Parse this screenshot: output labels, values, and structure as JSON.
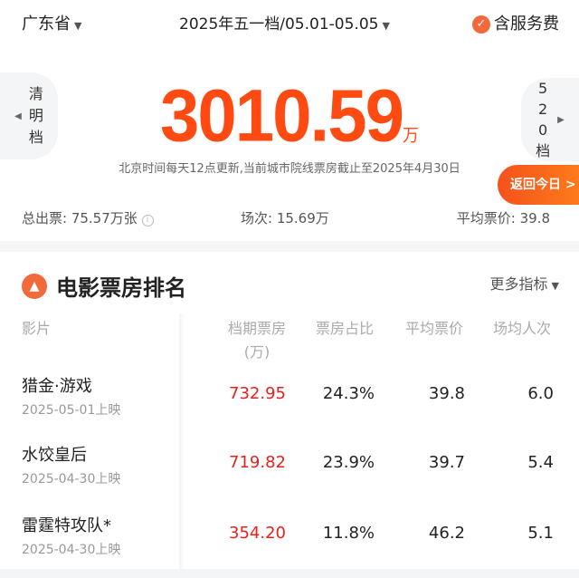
{
  "header": {
    "region": "广东省",
    "period": "2025年五一档/05.01-05.05",
    "service_fee": "含服务费"
  },
  "nav": {
    "prev": [
      "清",
      "明",
      "档"
    ],
    "next": [
      "5",
      "2",
      "0",
      "档"
    ]
  },
  "total": {
    "value": "3010.59",
    "unit": "万"
  },
  "note": "北京时间每天12点更新,当前城市院线票房截止至2025年4月30日",
  "today_button": "返回今日 >",
  "stats": {
    "tickets": "总出票: 75.57万张",
    "shows": "场次: 15.69万",
    "avg_price": "平均票价: 39.8"
  },
  "ranking": {
    "title": "电影票房排名",
    "more": "更多指标",
    "headers": {
      "film": "影片",
      "box": "档期票房",
      "box_unit": "(万)",
      "share": "票房占比",
      "avg_price": "平均票价",
      "avg_people": "场均人次"
    },
    "rows": [
      {
        "name": "猎金·游戏",
        "date": "2025-05-01上映",
        "box": "732.95",
        "share": "24.3%",
        "avg_price": "39.8",
        "avg_people": "6.0"
      },
      {
        "name": "水饺皇后",
        "date": "2025-04-30上映",
        "box": "719.82",
        "share": "23.9%",
        "avg_price": "39.7",
        "avg_people": "5.4"
      },
      {
        "name": "雷霆特攻队*",
        "date": "2025-04-30上映",
        "box": "354.20",
        "share": "11.8%",
        "avg_price": "46.2",
        "avg_people": "5.1"
      }
    ]
  },
  "colors": {
    "accent": "#ff4b12",
    "box_value": "#e8201a"
  }
}
